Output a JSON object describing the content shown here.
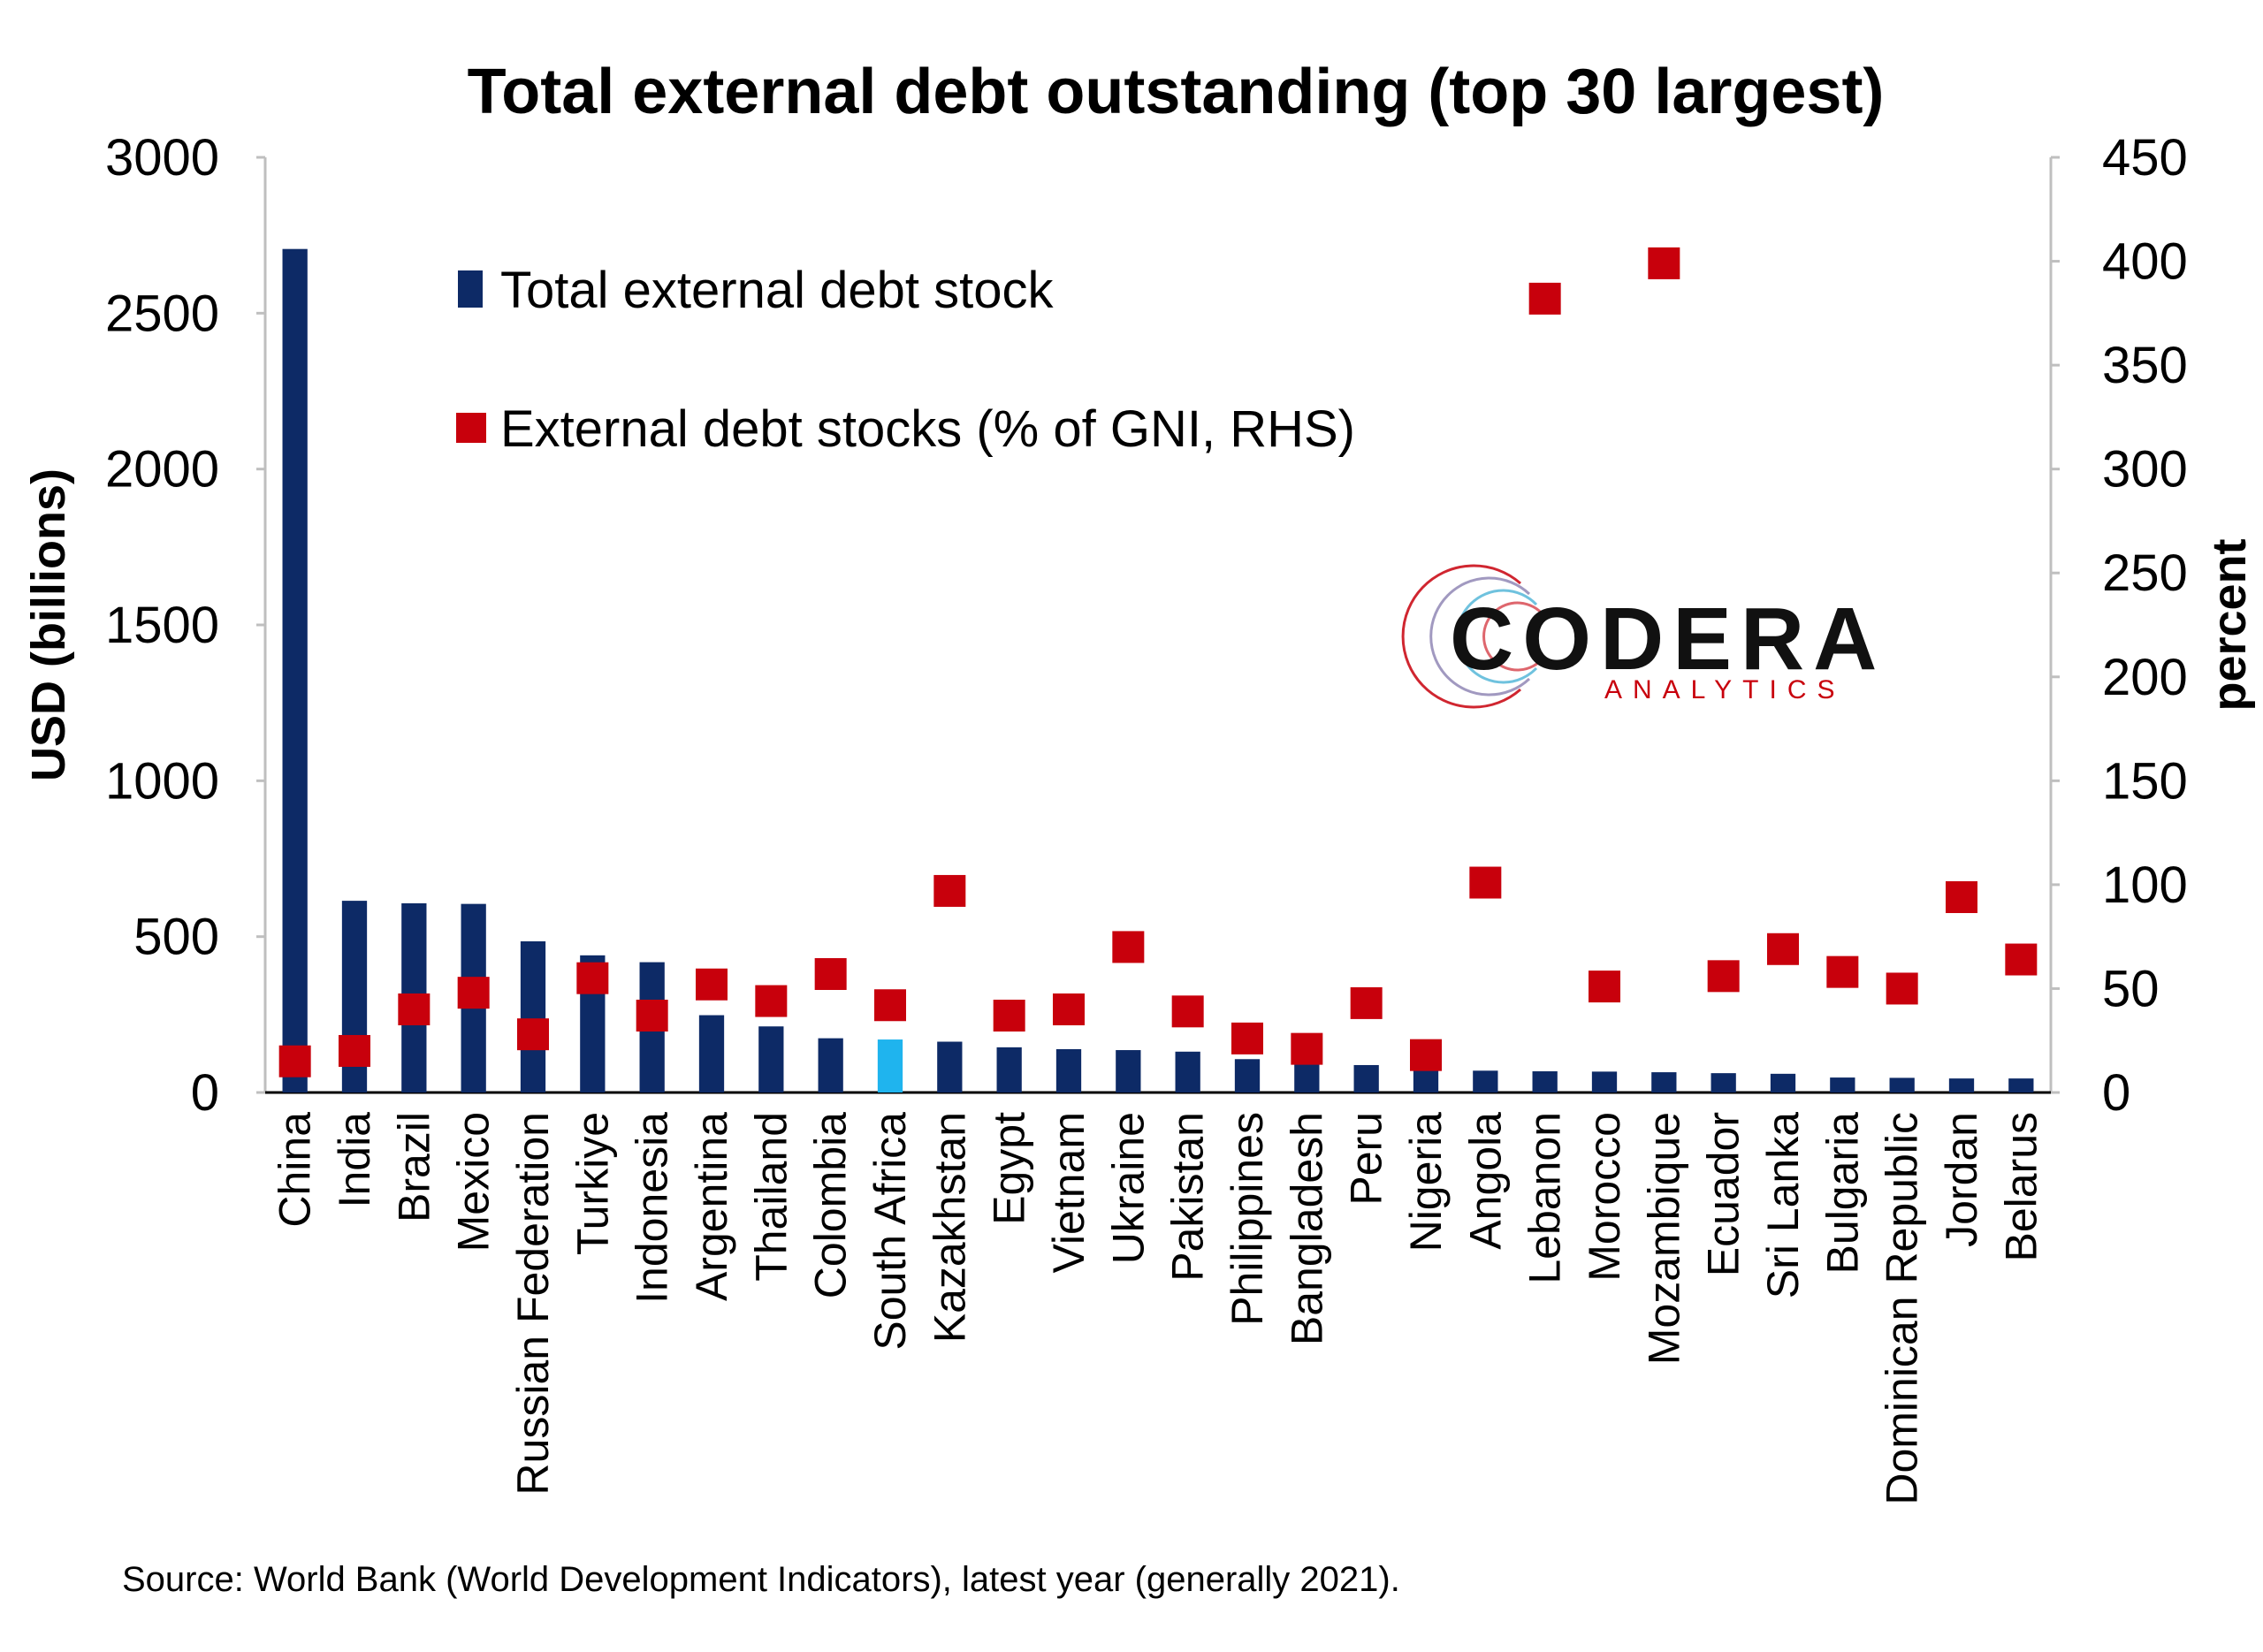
{
  "chart_data": {
    "type": "bar",
    "title": "Total external debt outstanding (top 30 largest)",
    "ylabel": "USD (billions)",
    "y2label": "percent",
    "ylim": [
      0,
      3000
    ],
    "y2lim": [
      0,
      450
    ],
    "yticks": [
      "0",
      "500",
      "1000",
      "1500",
      "2000",
      "2500",
      "3000"
    ],
    "y2ticks": [
      "0",
      "50",
      "100",
      "150",
      "200",
      "250",
      "300",
      "350",
      "400",
      "450"
    ],
    "categories": [
      "China",
      "India",
      "Brazil",
      "Mexico",
      "Russian Federation",
      "Turkiye",
      "Indonesia",
      "Argentina",
      "Thailand",
      "Colombia",
      "South Africa",
      "Kazakhstan",
      "Egypt",
      "Vietnam",
      "Ukraine",
      "Pakistan",
      "Philippines",
      "Bangladesh",
      "Peru",
      "Nigeria",
      "Angola",
      "Lebanon",
      "Morocco",
      "Mozambique",
      "Ecuador",
      "Sri Lanka",
      "Bulgaria",
      "Dominican Republic",
      "Jordan",
      "Belarus"
    ],
    "highlight_category": "South Africa",
    "series": [
      {
        "name": "Total external debt stock",
        "type": "bar",
        "axis": "left",
        "color": "#0d2a66",
        "highlight_color": "#1fb4ee",
        "values": [
          2706,
          615,
          607,
          605,
          485,
          440,
          418,
          248,
          212,
          174,
          170,
          163,
          145,
          139,
          136,
          131,
          107,
          96,
          88,
          78,
          70,
          68,
          67,
          65,
          62,
          60,
          48,
          47,
          45,
          45
        ]
      },
      {
        "name": "External debt stocks (% of GNI, RHS)",
        "type": "scatter",
        "axis": "right",
        "color": "#c8000c",
        "values": [
          15,
          20,
          40,
          48,
          28,
          55,
          37,
          52,
          44,
          57,
          42,
          97,
          37,
          40,
          70,
          39,
          26,
          21,
          43,
          18,
          101,
          382,
          51,
          399,
          56,
          69,
          58,
          50,
          94,
          64
        ]
      }
    ],
    "legend_placement": "top-left",
    "grid": false,
    "source": "Source: World Bank (World Development Indicators), latest year (generally 2021).",
    "logo": {
      "main": "CODERA",
      "sub": "ANALYTICS",
      "color": "#111111",
      "sub_color": "#c8000c"
    }
  }
}
